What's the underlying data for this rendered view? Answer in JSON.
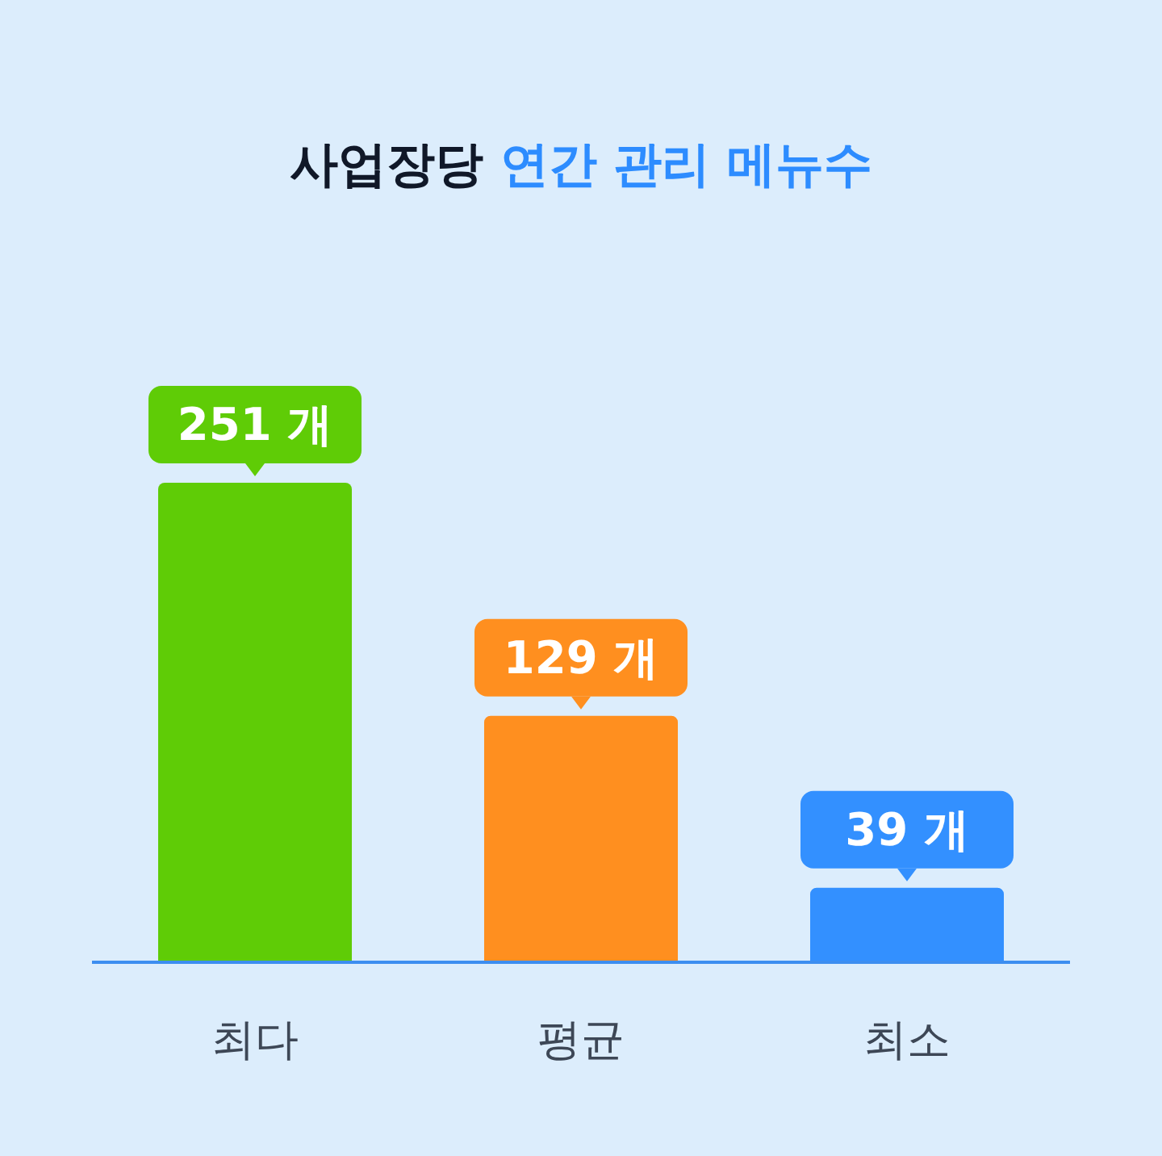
{
  "chart_data": {
    "type": "bar",
    "title": "사업장당 연간 관리 메뉴수",
    "categories": [
      "최다",
      "평균",
      "최소"
    ],
    "values": [
      251,
      129,
      39
    ],
    "colors": [
      "#5fcc06",
      "#ff8f1f",
      "#3390ff"
    ],
    "value_labels": [
      "251 개",
      "129 개",
      "39 개"
    ]
  }
}
